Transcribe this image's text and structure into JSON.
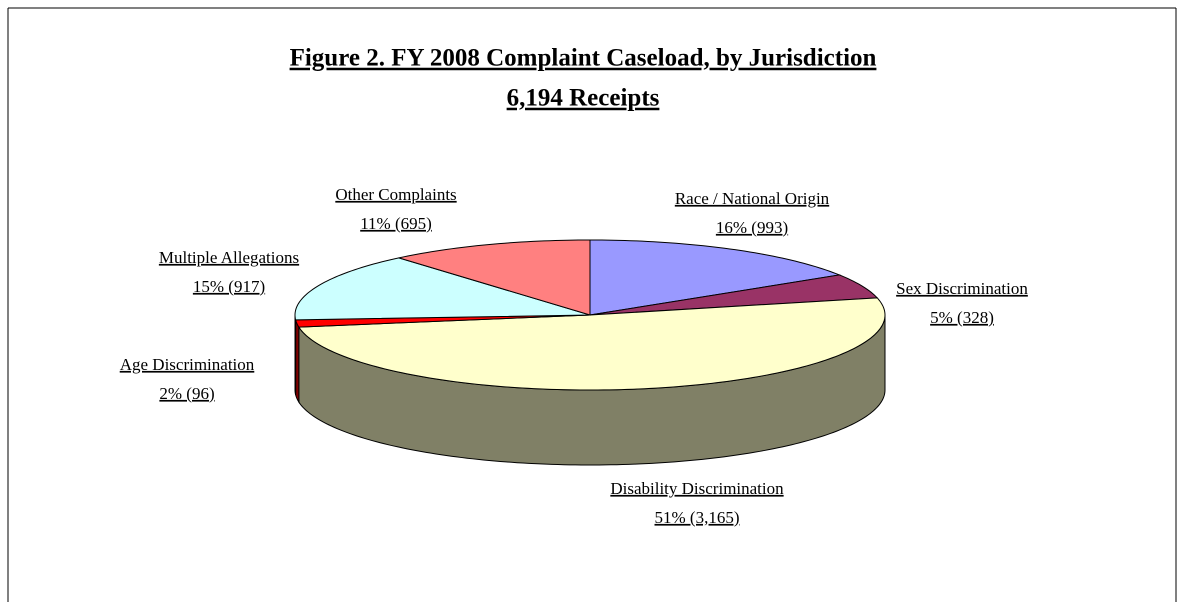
{
  "chart_data": {
    "type": "pie",
    "title": "Figure 2. FY 2008 Complaint Caseload, by Jurisdiction",
    "subtitle": "6,194 Receipts",
    "categories": [
      "Race / National Origin",
      "Sex Discrimination",
      "Disability Discrimination",
      "Age Discrimination",
      "Multiple Allegations",
      "Other Complaints"
    ],
    "values": [
      993,
      328,
      3165,
      96,
      917,
      695
    ],
    "value_labels": [
      "16% (993)",
      "5% (328)",
      "51% (3,165)",
      "2% (96)",
      "15% (917)",
      "11% (695)"
    ],
    "colors": [
      "#9999ff",
      "#993366",
      "#ffffcc",
      "#ff0000",
      "#ccffff",
      "#ff8080"
    ],
    "three_d": true
  }
}
